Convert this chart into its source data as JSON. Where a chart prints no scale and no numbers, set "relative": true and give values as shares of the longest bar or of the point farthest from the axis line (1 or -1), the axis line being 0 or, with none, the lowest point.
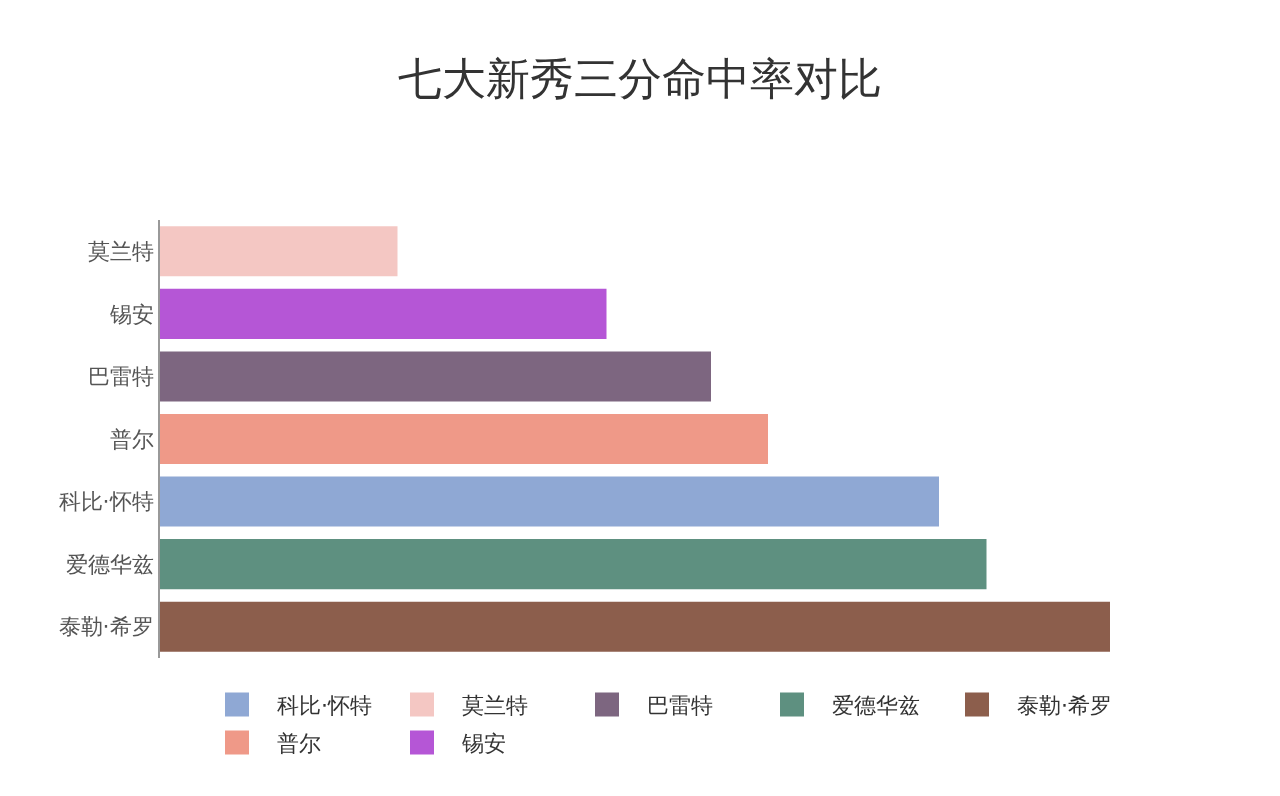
{
  "chart_data": {
    "type": "bar",
    "title": "七大新秀三分命中率对比",
    "orientation": "horizontal",
    "relative": true,
    "legend": "bottom",
    "categories": [
      "莫兰特",
      "锡安",
      "巴雷特",
      "普尔",
      "科比·怀特",
      "爱德华兹",
      "泰勒·希罗"
    ],
    "series": [
      {
        "name": "科比·怀特",
        "color": "#8fa8d4",
        "values": [
          null,
          null,
          null,
          null,
          0.82,
          null,
          null
        ]
      },
      {
        "name": "莫兰特",
        "color": "#f4c7c3",
        "values": [
          0.25,
          null,
          null,
          null,
          null,
          null,
          null
        ]
      },
      {
        "name": "巴雷特",
        "color": "#7d6680",
        "values": [
          null,
          null,
          0.58,
          null,
          null,
          null,
          null
        ]
      },
      {
        "name": "爱德华兹",
        "color": "#5e9080",
        "values": [
          null,
          null,
          null,
          null,
          null,
          0.87,
          null
        ]
      },
      {
        "name": "泰勒·希罗",
        "color": "#8c5e4c",
        "values": [
          null,
          null,
          null,
          null,
          null,
          null,
          1
        ]
      },
      {
        "name": "普尔",
        "color": "#ef9988",
        "values": [
          null,
          null,
          null,
          0.64,
          null,
          null,
          null
        ]
      },
      {
        "name": "锡安",
        "color": "#b556d6",
        "values": [
          null,
          0.47,
          null,
          null,
          null,
          null,
          null
        ]
      }
    ]
  }
}
